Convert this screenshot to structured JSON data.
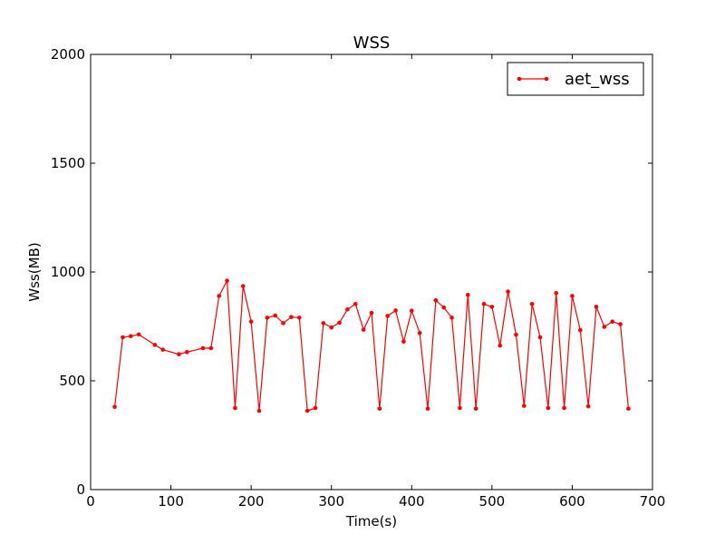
{
  "chart_data": {
    "type": "line",
    "title": "WSS",
    "xlabel": "Time(s)",
    "ylabel": "Wss(MB)",
    "xlim": [
      0,
      700
    ],
    "ylim": [
      0,
      2000
    ],
    "xticks": [
      0,
      100,
      200,
      300,
      400,
      500,
      600,
      700
    ],
    "yticks": [
      0,
      500,
      1000,
      1500,
      2000
    ],
    "grid": false,
    "legend_position": "top-right",
    "series": [
      {
        "name": "aet_wss",
        "color": "#ff0000",
        "marker": "circle",
        "x": [
          30,
          40,
          50,
          60,
          80,
          90,
          110,
          120,
          140,
          150,
          160,
          170,
          180,
          190,
          200,
          210,
          220,
          230,
          240,
          250,
          260,
          270,
          280,
          290,
          300,
          310,
          320,
          330,
          340,
          350,
          360,
          370,
          380,
          390,
          400,
          410,
          420,
          430,
          440,
          450,
          460,
          470,
          480,
          490,
          500,
          510,
          520,
          530,
          540,
          550,
          560,
          570,
          580,
          590,
          600,
          610,
          620,
          630,
          640,
          650,
          660,
          670
        ],
        "y": [
          380,
          700,
          705,
          713,
          665,
          643,
          622,
          632,
          650,
          650,
          890,
          960,
          375,
          935,
          772,
          362,
          790,
          800,
          765,
          793,
          790,
          362,
          375,
          765,
          745,
          767,
          828,
          853,
          735,
          812,
          372,
          798,
          823,
          680,
          822,
          720,
          372,
          870,
          837,
          790,
          375,
          895,
          372,
          853,
          840,
          662,
          910,
          712,
          385,
          853,
          700,
          375,
          903,
          375,
          890,
          733,
          383,
          840,
          748,
          772,
          760,
          372
        ]
      }
    ]
  }
}
